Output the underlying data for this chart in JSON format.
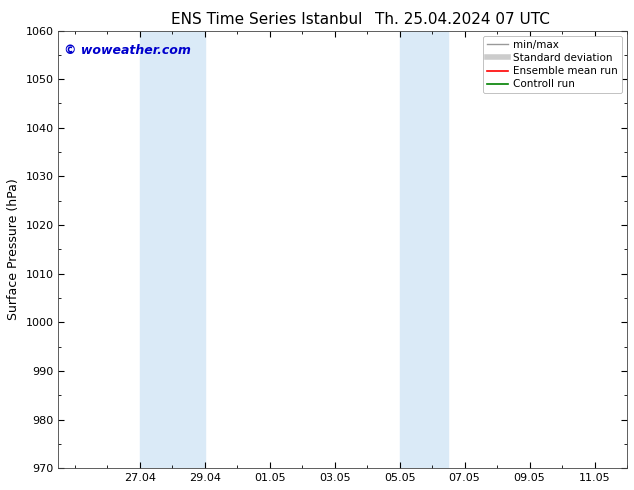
{
  "title_left": "ENS Time Series Istanbul",
  "title_right": "Th. 25.04.2024 07 UTC",
  "ylabel": "Surface Pressure (hPa)",
  "ylim": [
    970,
    1060
  ],
  "yticks": [
    970,
    980,
    990,
    1000,
    1010,
    1020,
    1030,
    1040,
    1050,
    1060
  ],
  "x_tick_positions": [
    2,
    4,
    6,
    8,
    10,
    12,
    14,
    16
  ],
  "x_labels": [
    "27.04",
    "29.04",
    "01.05",
    "03.05",
    "05.05",
    "07.05",
    "09.05",
    "11.05"
  ],
  "x_minor_positions": [
    1,
    2,
    3,
    4,
    5,
    6,
    7,
    8,
    9,
    10,
    11,
    12,
    13,
    14,
    15,
    16
  ],
  "xlim": [
    -0.5,
    17.0
  ],
  "shaded_bands": [
    {
      "x_start": 2.0,
      "x_end": 4.0
    },
    {
      "x_start": 10.0,
      "x_end": 11.5
    }
  ],
  "shade_color": "#daeaf7",
  "background_color": "#ffffff",
  "plot_bg_color": "#ffffff",
  "watermark": "© woweather.com",
  "watermark_color": "#0000cc",
  "legend_items": [
    {
      "label": "min/max",
      "color": "#999999",
      "lw": 1.0,
      "style": "solid"
    },
    {
      "label": "Standard deviation",
      "color": "#cccccc",
      "lw": 4,
      "style": "solid"
    },
    {
      "label": "Ensemble mean run",
      "color": "#ff0000",
      "lw": 1.2,
      "style": "solid"
    },
    {
      "label": "Controll run",
      "color": "#008000",
      "lw": 1.2,
      "style": "solid"
    }
  ],
  "title_fontsize": 11,
  "axis_label_fontsize": 9,
  "tick_fontsize": 8,
  "watermark_fontsize": 9,
  "legend_fontsize": 7.5,
  "figsize": [
    6.34,
    4.9
  ],
  "dpi": 100
}
